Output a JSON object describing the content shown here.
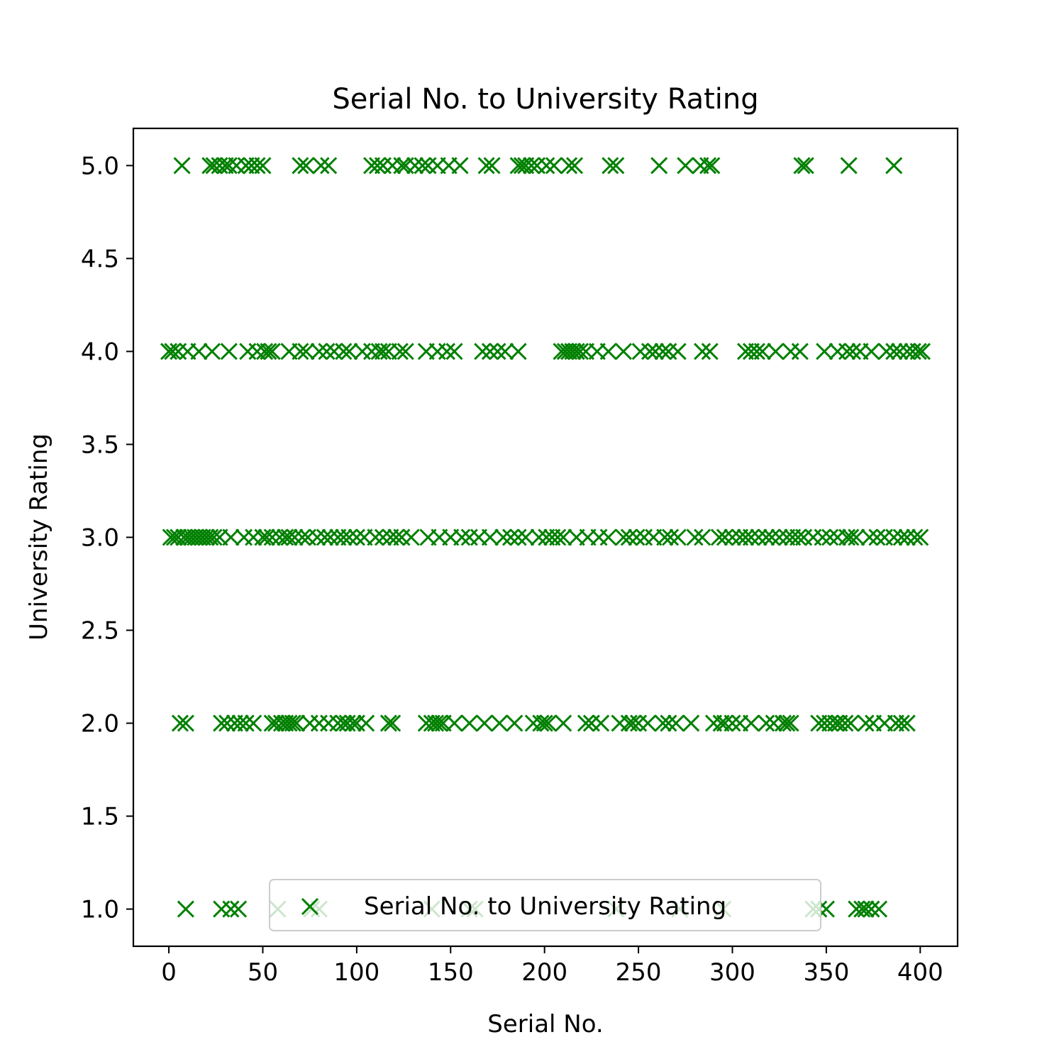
{
  "chart_data": {
    "type": "scatter",
    "title": "Serial No. to University Rating",
    "xlabel": "Serial No.",
    "ylabel": "University Rating",
    "xlim": [
      -18.9,
      419.9
    ],
    "ylim": [
      0.8,
      5.2
    ],
    "xticks": [
      0,
      50,
      100,
      150,
      200,
      250,
      300,
      350,
      400
    ],
    "yticks": [
      1.0,
      1.5,
      2.0,
      2.5,
      3.0,
      3.5,
      4.0,
      4.5,
      5.0
    ],
    "xtick_labels": [
      "0",
      "50",
      "100",
      "150",
      "200",
      "250",
      "300",
      "350",
      "400"
    ],
    "ytick_labels": [
      "1.0",
      "1.5",
      "2.0",
      "2.5",
      "3.0",
      "3.5",
      "4.0",
      "4.5",
      "5.0"
    ],
    "marker": "x",
    "color": "#008000",
    "grid": false,
    "legend": {
      "position": "lower center",
      "entries": [
        "Serial No. to University Rating"
      ]
    },
    "series": [
      {
        "name": "Serial No. to University Rating",
        "points_by_rating": {
          "5": [
            7,
            22,
            24,
            27,
            30,
            32,
            36,
            41,
            44,
            47,
            50,
            70,
            73,
            81,
            85,
            108,
            111,
            114,
            119,
            124,
            126,
            131,
            135,
            138,
            143,
            149,
            155,
            169,
            172,
            186,
            188,
            190,
            193,
            196,
            201,
            205,
            213,
            216,
            235,
            238,
            261,
            275,
            283,
            287,
            289,
            337,
            339,
            362,
            386
          ],
          "4": [
            0,
            2,
            5,
            10,
            16,
            23,
            32,
            42,
            47,
            51,
            53,
            55,
            64,
            70,
            73,
            80,
            84,
            88,
            93,
            96,
            103,
            108,
            112,
            114,
            117,
            123,
            126,
            137,
            143,
            148,
            152,
            167,
            171,
            175,
            179,
            186,
            209,
            211,
            213,
            215,
            217,
            219,
            222,
            228,
            234,
            242,
            251,
            256,
            259,
            263,
            266,
            271,
            284,
            288,
            307,
            310,
            313,
            316,
            323,
            331,
            336,
            349,
            356,
            361,
            364,
            368,
            374,
            382,
            386,
            389,
            393,
            396,
            399,
            401
          ],
          "3": [
            1,
            3,
            5,
            8,
            10,
            12,
            14,
            16,
            18,
            20,
            22,
            24,
            27,
            33,
            40,
            45,
            50,
            52,
            55,
            59,
            62,
            64,
            67,
            71,
            74,
            79,
            83,
            86,
            90,
            93,
            96,
            100,
            104,
            110,
            114,
            118,
            121,
            124,
            129,
            138,
            144,
            150,
            156,
            160,
            165,
            171,
            178,
            182,
            186,
            190,
            197,
            201,
            204,
            207,
            210,
            217,
            223,
            229,
            234,
            242,
            245,
            249,
            253,
            258,
            264,
            267,
            271,
            280,
            284,
            293,
            296,
            300,
            304,
            307,
            310,
            314,
            318,
            321,
            325,
            329,
            332,
            335,
            338,
            343,
            348,
            352,
            356,
            361,
            363,
            366,
            373,
            377,
            381,
            386,
            390,
            393,
            397,
            400
          ],
          "2": [
            6,
            9,
            28,
            31,
            35,
            38,
            41,
            45,
            55,
            57,
            60,
            62,
            64,
            66,
            68,
            75,
            80,
            85,
            90,
            93,
            95,
            98,
            100,
            105,
            117,
            119,
            137,
            140,
            142,
            144,
            146,
            152,
            160,
            168,
            176,
            184,
            194,
            198,
            200,
            202,
            210,
            222,
            225,
            230,
            240,
            245,
            247,
            250,
            255,
            263,
            266,
            270,
            278,
            290,
            294,
            296,
            300,
            304,
            310,
            318,
            322,
            327,
            329,
            331,
            346,
            349,
            352,
            355,
            357,
            360,
            363,
            371,
            375,
            381,
            387,
            390,
            393
          ],
          "1": [
            9,
            28,
            33,
            37,
            58,
            76,
            80,
            140,
            160,
            163,
            238,
            272,
            295,
            343,
            346,
            350,
            366,
            369,
            371,
            374,
            378
          ]
        }
      }
    ]
  }
}
